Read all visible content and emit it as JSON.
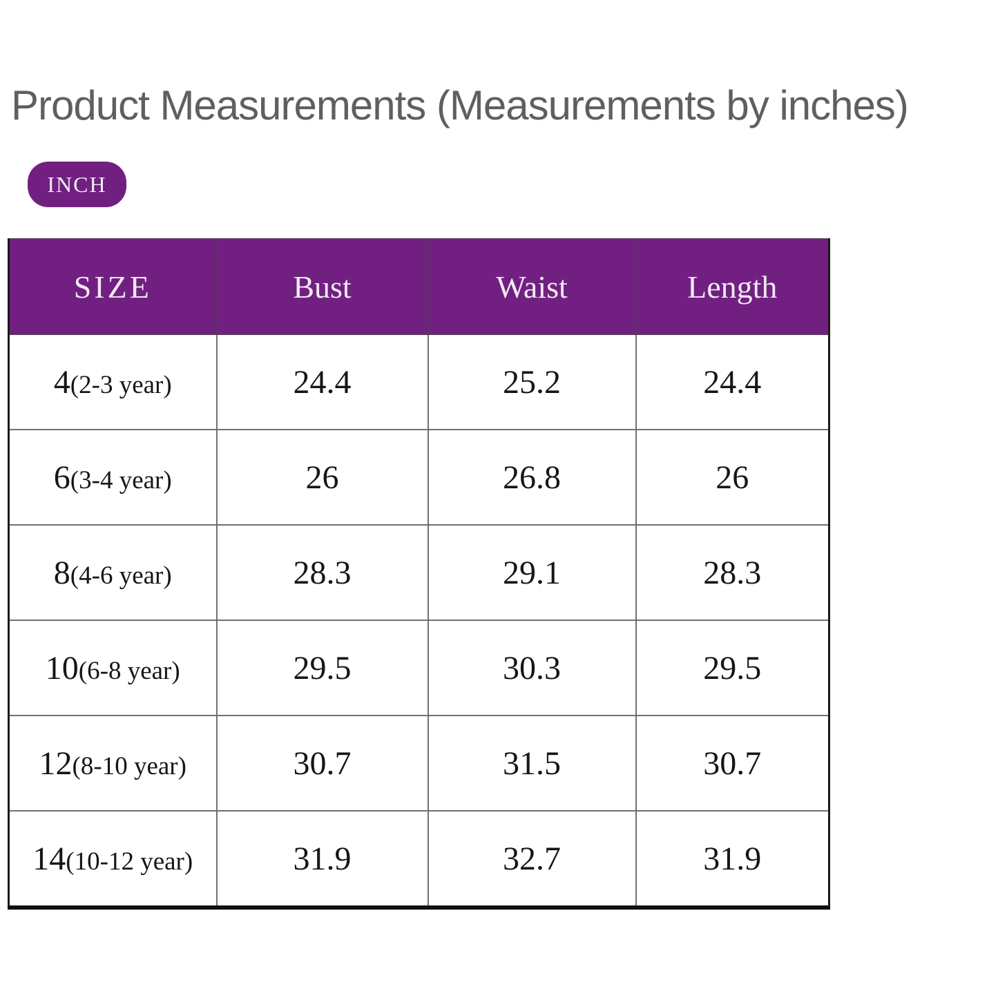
{
  "page": {
    "title": "Product Measurements (Measurements by inches)",
    "unit_badge": "INCH"
  },
  "colors": {
    "header_purple": "#712081",
    "badge_purple": "#712081",
    "title_gray": "#5f5f5f",
    "grid_gray": "#6f6f6f",
    "outer_border": "#1a1a1a",
    "header_text": "#f2e9f2"
  },
  "chart_data": {
    "type": "table",
    "title": "Product Measurements (Measurements by inches)",
    "unit": "inches",
    "columns": [
      "SIZE",
      "Bust",
      "Waist",
      "Length"
    ],
    "rows": [
      [
        "4(2-3 year)",
        24.4,
        25.2,
        24.4
      ],
      [
        "6(3-4 year)",
        26,
        26.8,
        26
      ],
      [
        "8(4-6 year)",
        28.3,
        29.1,
        28.3
      ],
      [
        "10(6-8 year)",
        29.5,
        30.3,
        29.5
      ],
      [
        "12(8-10 year)",
        30.7,
        31.5,
        30.7
      ],
      [
        "14(10-12 year)",
        31.9,
        32.7,
        31.9
      ]
    ]
  },
  "table": {
    "headers": {
      "size": "SIZE",
      "bust": "Bust",
      "waist": "Waist",
      "length": "Length"
    },
    "rows": [
      {
        "size_num": "4",
        "size_age": "(2-3 year)",
        "bust": "24.4",
        "waist": "25.2",
        "length": "24.4"
      },
      {
        "size_num": "6",
        "size_age": "(3-4 year)",
        "bust": "26",
        "waist": "26.8",
        "length": "26"
      },
      {
        "size_num": "8",
        "size_age": "(4-6 year)",
        "bust": "28.3",
        "waist": "29.1",
        "length": "28.3"
      },
      {
        "size_num": "10",
        "size_age": "(6-8 year)",
        "bust": "29.5",
        "waist": "30.3",
        "length": "29.5"
      },
      {
        "size_num": "12",
        "size_age": "(8-10 year)",
        "bust": "30.7",
        "waist": "31.5",
        "length": "30.7"
      },
      {
        "size_num": "14",
        "size_age": "(10-12 year)",
        "bust": "31.9",
        "waist": "32.7",
        "length": "31.9"
      }
    ]
  }
}
